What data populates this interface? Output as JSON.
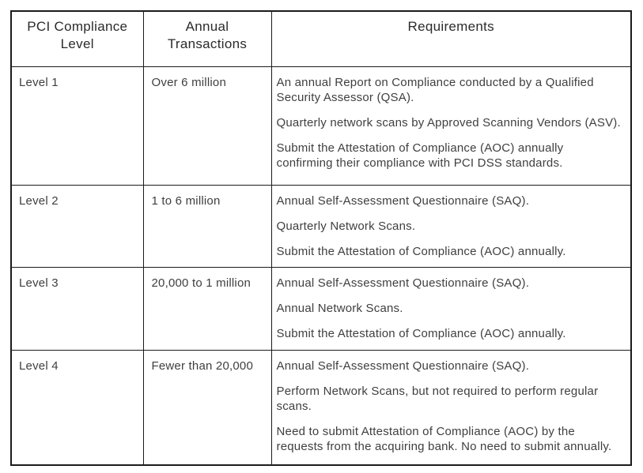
{
  "table": {
    "headers": [
      "PCI Compliance\nLevel",
      "Annual\nTransactions",
      "Requirements"
    ],
    "rows": [
      {
        "level": "Level 1",
        "transactions": "Over 6 million",
        "requirements": [
          "An annual Report on Compliance conducted by a Qualified Security Assessor (QSA).",
          "Quarterly network scans by Approved Scanning Vendors (ASV).",
          "Submit the Attestation of Compliance (AOC) annually confirming their compliance with PCI DSS standards."
        ]
      },
      {
        "level": "Level 2",
        "transactions": "1 to 6 million",
        "requirements": [
          "Annual Self-Assessment Questionnaire (SAQ).",
          "Quarterly Network Scans.",
          "Submit the Attestation of Compliance (AOC) annually."
        ]
      },
      {
        "level": "Level 3",
        "transactions": "20,000 to 1 million",
        "requirements": [
          "Annual Self-Assessment Questionnaire (SAQ).",
          "Annual Network Scans.",
          "Submit the Attestation of Compliance (AOC) annually."
        ]
      },
      {
        "level": "Level 4",
        "transactions": "Fewer than 20,000",
        "requirements": [
          "Annual Self-Assessment Questionnaire (SAQ).",
          "Perform Network Scans, but not required to perform regular scans.",
          "Need to submit Attestation of Compliance (AOC) by the requests from the acquiring bank. No need to submit annually."
        ]
      }
    ],
    "colors": {
      "border": "#1b1b1b",
      "header_text": "#2b2b2b",
      "body_text": "#3f3f3f",
      "background": "#ffffff"
    }
  }
}
